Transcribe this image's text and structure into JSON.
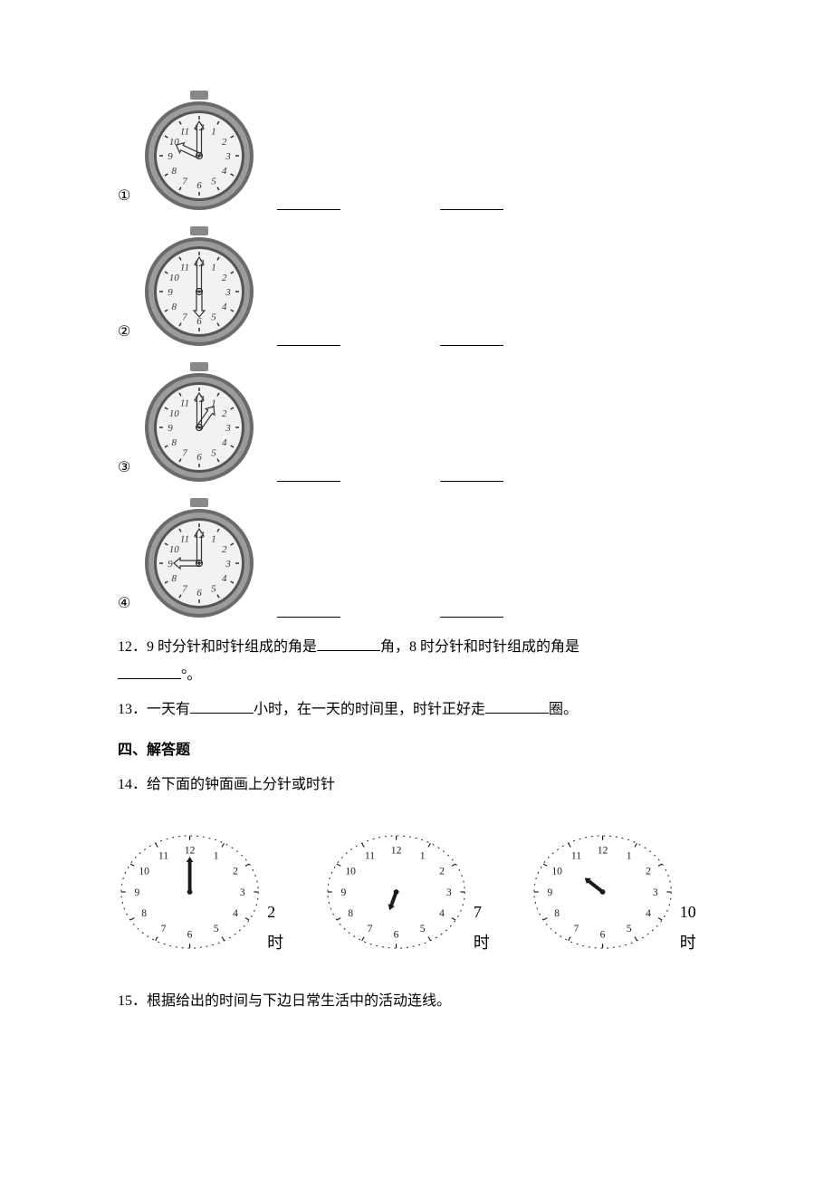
{
  "clocks": [
    {
      "num": "①",
      "hourAngle": -65,
      "minuteAngle": 0
    },
    {
      "num": "②",
      "hourAngle": 180,
      "minuteAngle": 0
    },
    {
      "num": "③",
      "hourAngle": 35,
      "minuteAngle": 0
    },
    {
      "num": "④",
      "hourAngle": -90,
      "minuteAngle": 0
    }
  ],
  "realClock": {
    "bezelOuter": "#6b6b6b",
    "bezelInner": "#9c9c9c",
    "face": "#f2f2f2",
    "tick": "#333333",
    "num": "#333333",
    "hand": "#333333",
    "topTab": "#888888",
    "radius": 60,
    "numFontSize": 11
  },
  "sketchClock": {
    "stroke": "#1a1a1a",
    "numFontSize": 12,
    "radius": 78
  },
  "q12": {
    "prefix": "12．9 时分针和时针组成的角是",
    "mid": "角，8 时分针和时针组成的角是",
    "suffix": "°。",
    "blankWidth": 70
  },
  "q13": {
    "prefix": "13．一天有",
    "mid": "小时，在一天的时间里，时针正好走",
    "suffix": "圈。",
    "blankWidth": 70
  },
  "section4": "四、解答题",
  "q14": {
    "text": "14．给下面的钟面画上分针或时针",
    "items": [
      {
        "label": "2 时",
        "handAngle": 0,
        "handLen": 40
      },
      {
        "label": "7 时",
        "handAngle": 200,
        "handLen": 22
      },
      {
        "label": "10 时",
        "handAngle": -52,
        "handLen": 26
      }
    ]
  },
  "q15": "15．根据给出的时间与下边日常生活中的活动连线。",
  "sideBlankWidth": 70,
  "sideGapWidth": 110
}
